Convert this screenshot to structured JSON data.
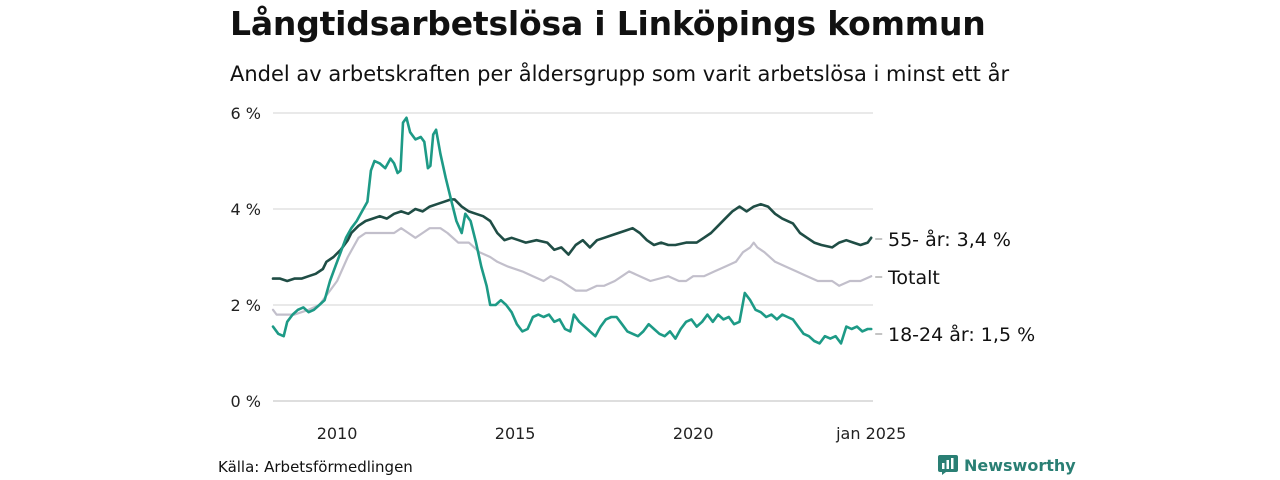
{
  "title": "Långtidsarbetslösa i Linköpings kommun",
  "subtitle": "Andel av arbetskraften per åldersgrupp som varit arbetslösa i minst ett år",
  "source": "Källa: Arbetsförmedlingen",
  "brand": "Newsworthy",
  "colors": {
    "series_55": "#1f4d45",
    "series_total": "#c2bfcb",
    "series_18_24": "#1d9a86",
    "grid": "#dcdcdc",
    "brand": "#2a7f74"
  },
  "chart_data": {
    "type": "line",
    "x_range": [
      2008.2,
      2025.05
    ],
    "ylim": [
      0,
      6
    ],
    "y_ticks": [
      {
        "value": 0,
        "label": "0 %"
      },
      {
        "value": 2,
        "label": "2 %"
      },
      {
        "value": 4,
        "label": "4 %"
      },
      {
        "value": 6,
        "label": "6 %"
      }
    ],
    "x_ticks": [
      {
        "value": 2010,
        "label": "2010"
      },
      {
        "value": 2015,
        "label": "2015"
      },
      {
        "value": 2020,
        "label": "2020"
      },
      {
        "value": 2025,
        "label": "jan 2025"
      }
    ],
    "series": [
      {
        "name": "Totalt",
        "label": "Totalt",
        "colorKey": "series_total",
        "points": [
          [
            2008.2,
            1.9
          ],
          [
            2008.3,
            1.8
          ],
          [
            2008.8,
            1.8
          ],
          [
            2009.2,
            1.9
          ],
          [
            2009.5,
            2.0
          ],
          [
            2009.8,
            2.3
          ],
          [
            2010.0,
            2.5
          ],
          [
            2010.3,
            3.0
          ],
          [
            2010.6,
            3.4
          ],
          [
            2010.8,
            3.5
          ],
          [
            2011.2,
            3.5
          ],
          [
            2011.6,
            3.5
          ],
          [
            2011.8,
            3.6
          ],
          [
            2012.0,
            3.5
          ],
          [
            2012.2,
            3.4
          ],
          [
            2012.4,
            3.5
          ],
          [
            2012.6,
            3.6
          ],
          [
            2012.9,
            3.6
          ],
          [
            2013.1,
            3.5
          ],
          [
            2013.4,
            3.3
          ],
          [
            2013.7,
            3.3
          ],
          [
            2014.0,
            3.1
          ],
          [
            2014.3,
            3.0
          ],
          [
            2014.5,
            2.9
          ],
          [
            2014.8,
            2.8
          ],
          [
            2015.2,
            2.7
          ],
          [
            2015.5,
            2.6
          ],
          [
            2015.8,
            2.5
          ],
          [
            2016.0,
            2.6
          ],
          [
            2016.3,
            2.5
          ],
          [
            2016.5,
            2.4
          ],
          [
            2016.7,
            2.3
          ],
          [
            2017.0,
            2.3
          ],
          [
            2017.3,
            2.4
          ],
          [
            2017.5,
            2.4
          ],
          [
            2017.8,
            2.5
          ],
          [
            2018.0,
            2.6
          ],
          [
            2018.2,
            2.7
          ],
          [
            2018.5,
            2.6
          ],
          [
            2018.8,
            2.5
          ],
          [
            2019.3,
            2.6
          ],
          [
            2019.6,
            2.5
          ],
          [
            2019.8,
            2.5
          ],
          [
            2020.0,
            2.6
          ],
          [
            2020.3,
            2.6
          ],
          [
            2020.6,
            2.7
          ],
          [
            2020.9,
            2.8
          ],
          [
            2021.2,
            2.9
          ],
          [
            2021.4,
            3.1
          ],
          [
            2021.6,
            3.2
          ],
          [
            2021.7,
            3.3
          ],
          [
            2021.8,
            3.2
          ],
          [
            2022.0,
            3.1
          ],
          [
            2022.3,
            2.9
          ],
          [
            2022.6,
            2.8
          ],
          [
            2022.9,
            2.7
          ],
          [
            2023.2,
            2.6
          ],
          [
            2023.5,
            2.5
          ],
          [
            2023.9,
            2.5
          ],
          [
            2024.1,
            2.4
          ],
          [
            2024.4,
            2.5
          ],
          [
            2024.7,
            2.5
          ],
          [
            2025.0,
            2.6
          ]
        ]
      },
      {
        "name": "55- år",
        "label": "55- år: 3,4 %",
        "colorKey": "series_55",
        "points": [
          [
            2008.2,
            2.55
          ],
          [
            2008.4,
            2.55
          ],
          [
            2008.6,
            2.5
          ],
          [
            2008.8,
            2.55
          ],
          [
            2009.0,
            2.55
          ],
          [
            2009.2,
            2.6
          ],
          [
            2009.4,
            2.65
          ],
          [
            2009.6,
            2.75
          ],
          [
            2009.7,
            2.9
          ],
          [
            2009.9,
            3.0
          ],
          [
            2010.1,
            3.15
          ],
          [
            2010.3,
            3.35
          ],
          [
            2010.4,
            3.5
          ],
          [
            2010.6,
            3.65
          ],
          [
            2010.8,
            3.75
          ],
          [
            2011.0,
            3.8
          ],
          [
            2011.2,
            3.85
          ],
          [
            2011.4,
            3.8
          ],
          [
            2011.6,
            3.9
          ],
          [
            2011.8,
            3.95
          ],
          [
            2012.0,
            3.9
          ],
          [
            2012.2,
            4.0
          ],
          [
            2012.4,
            3.95
          ],
          [
            2012.6,
            4.05
          ],
          [
            2012.8,
            4.1
          ],
          [
            2013.0,
            4.15
          ],
          [
            2013.2,
            4.2
          ],
          [
            2013.3,
            4.2
          ],
          [
            2013.5,
            4.05
          ],
          [
            2013.7,
            3.95
          ],
          [
            2013.9,
            3.9
          ],
          [
            2014.1,
            3.85
          ],
          [
            2014.3,
            3.75
          ],
          [
            2014.5,
            3.5
          ],
          [
            2014.7,
            3.35
          ],
          [
            2014.9,
            3.4
          ],
          [
            2015.1,
            3.35
          ],
          [
            2015.3,
            3.3
          ],
          [
            2015.6,
            3.35
          ],
          [
            2015.9,
            3.3
          ],
          [
            2016.1,
            3.15
          ],
          [
            2016.3,
            3.2
          ],
          [
            2016.5,
            3.05
          ],
          [
            2016.7,
            3.25
          ],
          [
            2016.9,
            3.35
          ],
          [
            2017.1,
            3.2
          ],
          [
            2017.3,
            3.35
          ],
          [
            2017.5,
            3.4
          ],
          [
            2017.7,
            3.45
          ],
          [
            2017.9,
            3.5
          ],
          [
            2018.1,
            3.55
          ],
          [
            2018.3,
            3.6
          ],
          [
            2018.5,
            3.5
          ],
          [
            2018.7,
            3.35
          ],
          [
            2018.9,
            3.25
          ],
          [
            2019.1,
            3.3
          ],
          [
            2019.3,
            3.25
          ],
          [
            2019.5,
            3.25
          ],
          [
            2019.8,
            3.3
          ],
          [
            2020.1,
            3.3
          ],
          [
            2020.3,
            3.4
          ],
          [
            2020.5,
            3.5
          ],
          [
            2020.7,
            3.65
          ],
          [
            2020.9,
            3.8
          ],
          [
            2021.1,
            3.95
          ],
          [
            2021.3,
            4.05
          ],
          [
            2021.5,
            3.95
          ],
          [
            2021.7,
            4.05
          ],
          [
            2021.9,
            4.1
          ],
          [
            2022.1,
            4.05
          ],
          [
            2022.3,
            3.9
          ],
          [
            2022.5,
            3.8
          ],
          [
            2022.8,
            3.7
          ],
          [
            2023.0,
            3.5
          ],
          [
            2023.2,
            3.4
          ],
          [
            2023.4,
            3.3
          ],
          [
            2023.6,
            3.25
          ],
          [
            2023.9,
            3.2
          ],
          [
            2024.1,
            3.3
          ],
          [
            2024.3,
            3.35
          ],
          [
            2024.5,
            3.3
          ],
          [
            2024.7,
            3.25
          ],
          [
            2024.9,
            3.3
          ],
          [
            2025.0,
            3.4
          ]
        ]
      },
      {
        "name": "18-24 år",
        "label": "18-24 år: 1,5 %",
        "colorKey": "series_18_24",
        "points": [
          [
            2008.2,
            1.55
          ],
          [
            2008.35,
            1.4
          ],
          [
            2008.5,
            1.35
          ],
          [
            2008.6,
            1.65
          ],
          [
            2008.75,
            1.8
          ],
          [
            2008.9,
            1.9
          ],
          [
            2009.05,
            1.95
          ],
          [
            2009.2,
            1.85
          ],
          [
            2009.35,
            1.9
          ],
          [
            2009.5,
            2.0
          ],
          [
            2009.65,
            2.1
          ],
          [
            2009.8,
            2.5
          ],
          [
            2009.95,
            2.8
          ],
          [
            2010.1,
            3.1
          ],
          [
            2010.25,
            3.4
          ],
          [
            2010.4,
            3.6
          ],
          [
            2010.55,
            3.75
          ],
          [
            2010.7,
            3.95
          ],
          [
            2010.85,
            4.15
          ],
          [
            2010.95,
            4.8
          ],
          [
            2011.05,
            5.0
          ],
          [
            2011.2,
            4.95
          ],
          [
            2011.35,
            4.85
          ],
          [
            2011.5,
            5.05
          ],
          [
            2011.6,
            4.95
          ],
          [
            2011.7,
            4.75
          ],
          [
            2011.78,
            4.8
          ],
          [
            2011.85,
            5.8
          ],
          [
            2011.95,
            5.9
          ],
          [
            2012.05,
            5.6
          ],
          [
            2012.2,
            5.45
          ],
          [
            2012.35,
            5.5
          ],
          [
            2012.45,
            5.4
          ],
          [
            2012.55,
            4.85
          ],
          [
            2012.62,
            4.9
          ],
          [
            2012.7,
            5.55
          ],
          [
            2012.78,
            5.65
          ],
          [
            2012.9,
            5.15
          ],
          [
            2013.05,
            4.65
          ],
          [
            2013.2,
            4.2
          ],
          [
            2013.35,
            3.75
          ],
          [
            2013.5,
            3.5
          ],
          [
            2013.6,
            3.9
          ],
          [
            2013.75,
            3.75
          ],
          [
            2013.9,
            3.3
          ],
          [
            2014.05,
            2.8
          ],
          [
            2014.2,
            2.4
          ],
          [
            2014.3,
            2.0
          ],
          [
            2014.45,
            2.0
          ],
          [
            2014.6,
            2.1
          ],
          [
            2014.75,
            2.0
          ],
          [
            2014.9,
            1.85
          ],
          [
            2015.05,
            1.6
          ],
          [
            2015.2,
            1.45
          ],
          [
            2015.35,
            1.5
          ],
          [
            2015.5,
            1.75
          ],
          [
            2015.65,
            1.8
          ],
          [
            2015.8,
            1.75
          ],
          [
            2015.95,
            1.8
          ],
          [
            2016.1,
            1.65
          ],
          [
            2016.25,
            1.7
          ],
          [
            2016.4,
            1.5
          ],
          [
            2016.55,
            1.45
          ],
          [
            2016.65,
            1.8
          ],
          [
            2016.8,
            1.65
          ],
          [
            2016.95,
            1.55
          ],
          [
            2017.1,
            1.45
          ],
          [
            2017.25,
            1.35
          ],
          [
            2017.4,
            1.55
          ],
          [
            2017.55,
            1.7
          ],
          [
            2017.7,
            1.75
          ],
          [
            2017.85,
            1.75
          ],
          [
            2018.0,
            1.6
          ],
          [
            2018.15,
            1.45
          ],
          [
            2018.3,
            1.4
          ],
          [
            2018.45,
            1.35
          ],
          [
            2018.6,
            1.45
          ],
          [
            2018.75,
            1.6
          ],
          [
            2018.9,
            1.5
          ],
          [
            2019.05,
            1.4
          ],
          [
            2019.2,
            1.35
          ],
          [
            2019.35,
            1.45
          ],
          [
            2019.5,
            1.3
          ],
          [
            2019.65,
            1.5
          ],
          [
            2019.8,
            1.65
          ],
          [
            2019.95,
            1.7
          ],
          [
            2020.1,
            1.55
          ],
          [
            2020.25,
            1.65
          ],
          [
            2020.4,
            1.8
          ],
          [
            2020.55,
            1.65
          ],
          [
            2020.7,
            1.8
          ],
          [
            2020.85,
            1.7
          ],
          [
            2021.0,
            1.75
          ],
          [
            2021.15,
            1.6
          ],
          [
            2021.3,
            1.65
          ],
          [
            2021.45,
            2.25
          ],
          [
            2021.6,
            2.1
          ],
          [
            2021.75,
            1.9
          ],
          [
            2021.9,
            1.85
          ],
          [
            2022.05,
            1.75
          ],
          [
            2022.2,
            1.8
          ],
          [
            2022.35,
            1.7
          ],
          [
            2022.5,
            1.8
          ],
          [
            2022.65,
            1.75
          ],
          [
            2022.8,
            1.7
          ],
          [
            2022.95,
            1.55
          ],
          [
            2023.1,
            1.4
          ],
          [
            2023.25,
            1.35
          ],
          [
            2023.4,
            1.25
          ],
          [
            2023.55,
            1.2
          ],
          [
            2023.7,
            1.35
          ],
          [
            2023.85,
            1.3
          ],
          [
            2024.0,
            1.35
          ],
          [
            2024.15,
            1.2
          ],
          [
            2024.3,
            1.55
          ],
          [
            2024.45,
            1.5
          ],
          [
            2024.6,
            1.55
          ],
          [
            2024.75,
            1.45
          ],
          [
            2024.9,
            1.5
          ],
          [
            2025.0,
            1.5
          ]
        ]
      }
    ]
  }
}
